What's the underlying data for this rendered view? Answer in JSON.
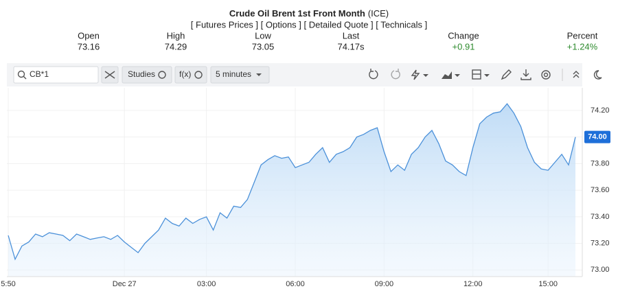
{
  "header": {
    "title": "Crude Oil Brent 1st Front Month",
    "exchange": "(ICE)",
    "links": "[ Futures Prices ] [ Options ] [ Detailed Quote ] [ Technicals ]",
    "stats": [
      {
        "label": "Open",
        "value": "73.16"
      },
      {
        "label": "High",
        "value": "74.29"
      },
      {
        "label": "Low",
        "value": "73.05"
      },
      {
        "label": "Last",
        "value": "74.17s"
      },
      {
        "label": "Change",
        "value": "+0.91"
      },
      {
        "label": "Percent",
        "value": "+1.24%"
      }
    ]
  },
  "toolbar": {
    "symbol": "CB*1",
    "studies": "Studies",
    "fx": "f(x)",
    "interval": "5 minutes"
  },
  "chart_data": {
    "type": "line",
    "categories": [
      "5:50",
      null,
      null,
      null,
      null,
      null,
      null,
      null,
      null,
      null,
      null,
      null,
      null,
      null,
      null,
      null,
      null,
      "Dec 27",
      null,
      null,
      null,
      null,
      null,
      null,
      null,
      null,
      null,
      null,
      null,
      "03:00",
      null,
      null,
      null,
      null,
      null,
      null,
      null,
      null,
      null,
      null,
      null,
      null,
      "06:00",
      null,
      null,
      null,
      null,
      null,
      null,
      null,
      null,
      null,
      null,
      null,
      null,
      "09:00",
      null,
      null,
      null,
      null,
      null,
      null,
      null,
      null,
      null,
      null,
      null,
      null,
      "12:00",
      null,
      null,
      null,
      null,
      null,
      null,
      null,
      null,
      null,
      null,
      "15:00",
      null,
      null,
      null,
      null
    ],
    "series": [
      {
        "color": "#4a90d9",
        "values": [
          73.26,
          73.08,
          73.18,
          73.21,
          73.27,
          73.25,
          73.28,
          73.27,
          73.26,
          73.22,
          73.27,
          73.25,
          73.23,
          73.24,
          73.25,
          73.23,
          73.26,
          73.21,
          73.17,
          73.13,
          73.2,
          73.25,
          73.3,
          73.39,
          73.35,
          73.33,
          73.39,
          73.35,
          73.38,
          73.4,
          73.3,
          73.43,
          73.39,
          73.48,
          73.47,
          73.53,
          73.66,
          73.79,
          73.83,
          73.86,
          73.84,
          73.85,
          73.77,
          73.79,
          73.81,
          73.87,
          73.92,
          73.81,
          73.87,
          73.89,
          73.92,
          74.0,
          74.02,
          74.05,
          74.07,
          73.89,
          73.74,
          73.79,
          73.75,
          73.87,
          73.92,
          74.0,
          74.05,
          73.95,
          73.82,
          73.79,
          73.74,
          73.71,
          73.92,
          74.1,
          74.15,
          74.18,
          74.19,
          74.25,
          74.18,
          74.08,
          73.92,
          73.81,
          73.76,
          73.75,
          73.81,
          73.87,
          73.79,
          74.0
        ]
      }
    ],
    "ylim": [
      72.95,
      74.37
    ],
    "yticks": [
      {
        "value": 73.0,
        "label": "73.00"
      },
      {
        "value": 73.2,
        "label": "73.20"
      },
      {
        "value": 73.4,
        "label": "73.40"
      },
      {
        "value": 73.6,
        "label": "73.60"
      },
      {
        "value": 73.8,
        "label": "73.80"
      },
      {
        "value": 74.0,
        "label": "74.00"
      },
      {
        "value": 74.2,
        "label": "74.20"
      }
    ],
    "last_price": {
      "value": 74.0,
      "label": "74.00"
    },
    "grid": true
  }
}
